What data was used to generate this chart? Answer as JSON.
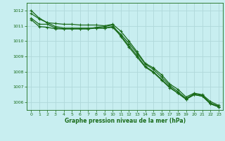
{
  "title": "Graphe pression niveau de la mer (hPa)",
  "background_color": "#c8eef0",
  "grid_color": "#b0d8da",
  "line_color": "#1a6b1a",
  "marker_color": "#1a6b1a",
  "xlim": [
    -0.5,
    23.5
  ],
  "ylim": [
    1005.5,
    1012.5
  ],
  "yticks": [
    1006,
    1007,
    1008,
    1009,
    1010,
    1011,
    1012
  ],
  "xtick_labels": [
    "0",
    "1",
    "2",
    "3",
    "4",
    "5",
    "6",
    "7",
    "8",
    "9",
    "10",
    "11",
    "12",
    "13",
    "14",
    "15",
    "16",
    "17",
    "18",
    "19",
    "20",
    "21",
    "22",
    "23"
  ],
  "series": [
    [
      1012.0,
      1011.5,
      1011.2,
      1011.15,
      1011.1,
      1011.1,
      1011.05,
      1011.05,
      1011.05,
      1011.0,
      1011.1,
      1010.65,
      1010.0,
      1009.3,
      1008.55,
      1008.25,
      1007.8,
      1007.2,
      1006.85,
      1006.35,
      1006.6,
      1006.5,
      1006.05,
      1005.8
    ],
    [
      1011.8,
      1011.45,
      1011.2,
      1010.95,
      1010.85,
      1010.85,
      1010.85,
      1010.85,
      1010.85,
      1010.85,
      1010.95,
      1010.45,
      1009.85,
      1009.2,
      1008.5,
      1008.15,
      1007.65,
      1007.1,
      1006.7,
      1006.25,
      1006.55,
      1006.45,
      1005.95,
      1005.75
    ],
    [
      1011.5,
      1011.1,
      1011.1,
      1010.85,
      1010.8,
      1010.8,
      1010.8,
      1010.8,
      1010.85,
      1010.85,
      1010.9,
      1010.35,
      1009.7,
      1009.05,
      1008.35,
      1008.0,
      1007.5,
      1007.0,
      1006.6,
      1006.2,
      1006.5,
      1006.4,
      1005.9,
      1005.7
    ],
    [
      1011.4,
      1010.95,
      1010.9,
      1010.8,
      1010.8,
      1010.8,
      1010.8,
      1010.8,
      1010.9,
      1010.95,
      1011.05,
      1010.3,
      1009.6,
      1008.95,
      1008.3,
      1007.95,
      1007.45,
      1006.95,
      1006.6,
      1006.2,
      1006.5,
      1006.4,
      1005.9,
      1005.7
    ]
  ]
}
